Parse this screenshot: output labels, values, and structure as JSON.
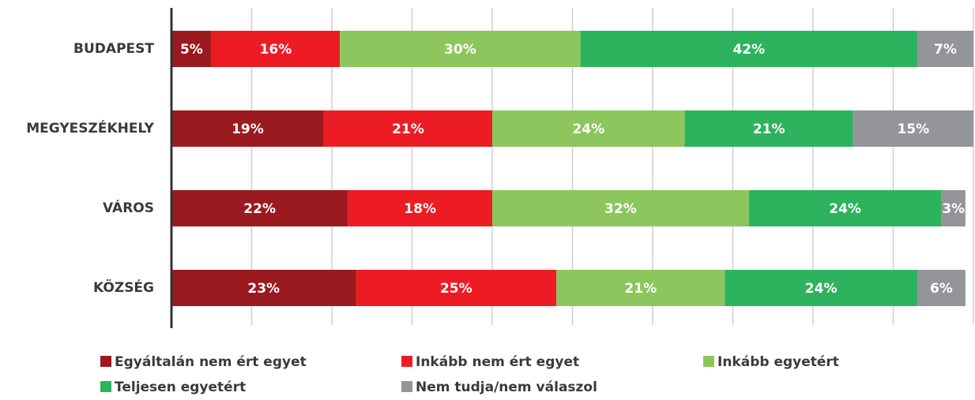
{
  "chart_data": {
    "type": "stacked_bar_horizontal",
    "categories": [
      "BUDAPEST",
      "MEGYESZÉKHELY",
      "VÁROS",
      "KÖZSÉG"
    ],
    "series": [
      {
        "name": "Egyáltalán nem ért egyet",
        "color": "#9b1a1f",
        "values": [
          5,
          19,
          22,
          23
        ],
        "value_labels": [
          "5%",
          "19%",
          "22%",
          "23%"
        ]
      },
      {
        "name": "Inkább nem ért egyet",
        "color": "#ed1c24",
        "values": [
          16,
          21,
          18,
          25
        ],
        "value_labels": [
          "16%",
          "21%",
          "18%",
          "25%"
        ]
      },
      {
        "name": "Inkább egyetért",
        "color": "#8cc65c",
        "values": [
          30,
          24,
          32,
          21
        ],
        "value_labels": [
          "30%",
          "24%",
          "32%",
          "21%"
        ]
      },
      {
        "name": "Teljesen egyetért",
        "color": "#2db35d",
        "values": [
          42,
          21,
          24,
          24
        ],
        "value_labels": [
          "42%",
          "21%",
          "24%",
          "24%"
        ]
      },
      {
        "name": "Nem tudja/nem válaszol",
        "color": "#939598",
        "values": [
          7,
          15,
          3,
          6
        ],
        "value_labels": [
          "7%",
          "15%",
          "3%",
          "6%"
        ]
      }
    ],
    "xlim": [
      0,
      100
    ],
    "xticks": [
      0,
      10,
      20,
      30,
      40,
      50,
      60,
      70,
      80,
      90,
      100
    ],
    "grid": true,
    "legend": "bottom"
  }
}
